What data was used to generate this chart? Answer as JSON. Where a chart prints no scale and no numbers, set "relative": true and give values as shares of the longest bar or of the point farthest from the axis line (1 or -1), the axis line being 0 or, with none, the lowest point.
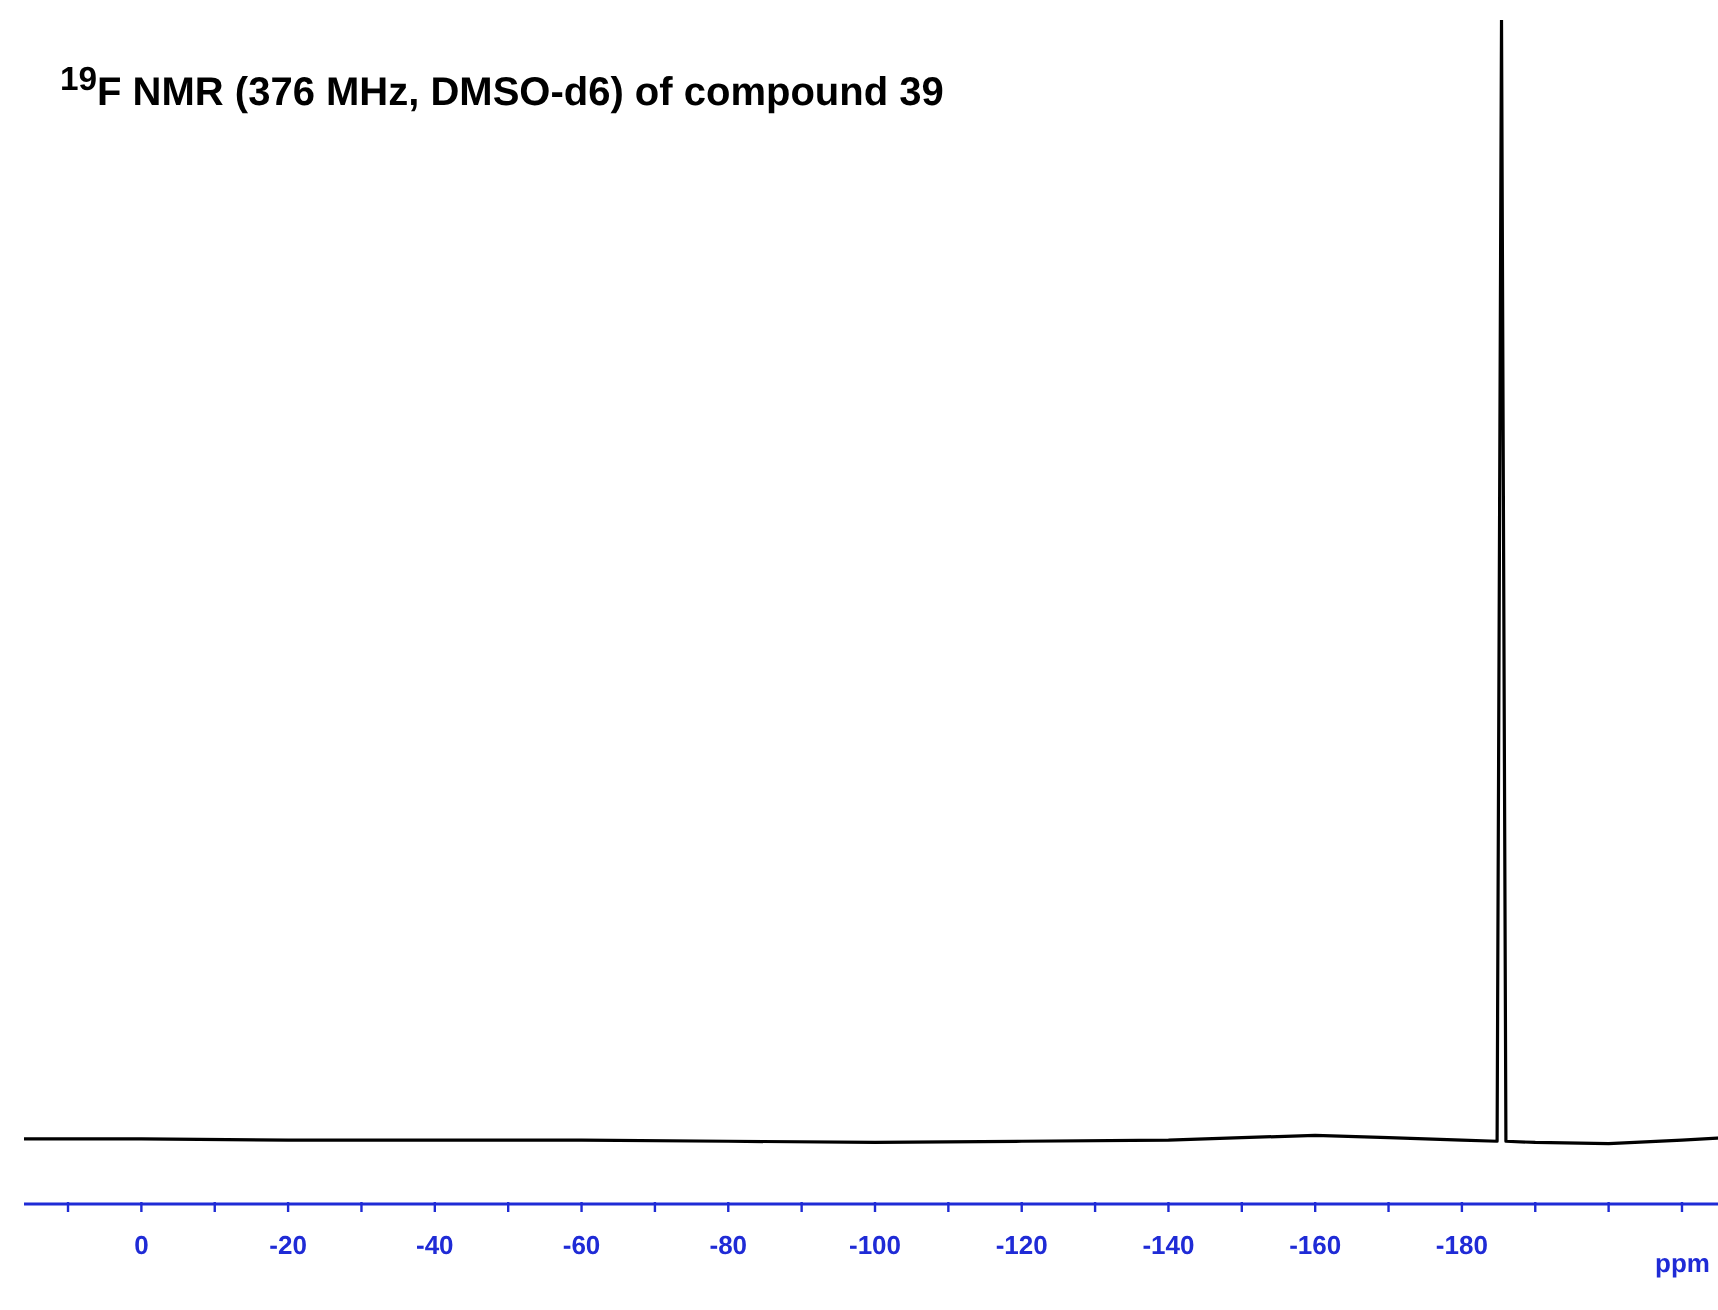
{
  "chart_data": {
    "type": "line",
    "title": "$^{19}$F NMR (376 MHz, DMSO-d6) of compound 39",
    "xlabel": "ppm",
    "relative": true,
    "tick_labels": "x",
    "legend": false,
    "grid": false,
    "color": "#000000",
    "xlim": [
      16,
      -216
    ],
    "xticks": [
      {
        "value": 10,
        "label": null
      },
      0,
      {
        "value": -10,
        "label": null
      },
      -20,
      {
        "value": -30,
        "label": null
      },
      -40,
      {
        "value": -50,
        "label": null
      },
      -60,
      {
        "value": -70,
        "label": null
      },
      -80,
      {
        "value": -90,
        "label": null
      },
      -100,
      {
        "value": -110,
        "label": null
      },
      -120,
      {
        "value": -130,
        "label": null
      },
      -140,
      {
        "value": -150,
        "label": null
      },
      -160,
      {
        "value": -170,
        "label": null
      },
      -180,
      {
        "value": -190,
        "label": null
      },
      {
        "value": -200,
        "label": null
      },
      {
        "value": -210,
        "label": null
      }
    ],
    "x": [
      16,
      0,
      -20,
      -40,
      -60,
      -80,
      -100,
      -120,
      -140,
      -150,
      -160,
      -170,
      -180,
      -184.8,
      -185.4,
      -186,
      -190,
      -200,
      -210,
      -216
    ],
    "values": [
      0.055,
      0.055,
      0.054,
      0.054,
      0.054,
      0.053,
      0.052,
      0.053,
      0.054,
      0.056,
      0.058,
      0.056,
      0.054,
      0.053,
      1,
      0.053,
      0.052,
      0.051,
      0.054,
      0.056
    ]
  }
}
